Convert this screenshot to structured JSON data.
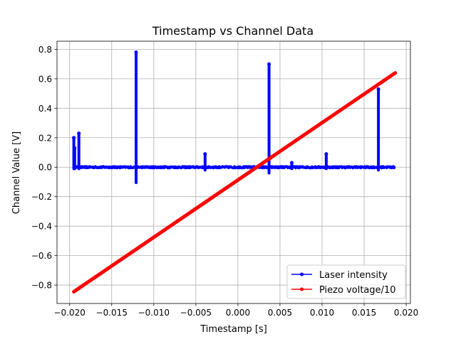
{
  "chart_data": {
    "type": "line",
    "title": "Timestamp vs Channel Data",
    "xlabel": "Timestamp [s]",
    "ylabel": "Channel Value [V]",
    "xlim": [
      -0.0215,
      0.0205
    ],
    "ylim": [
      -0.925,
      0.855
    ],
    "xticks": [
      -0.02,
      -0.015,
      -0.01,
      -0.005,
      0.0,
      0.005,
      0.01,
      0.015,
      0.02
    ],
    "xtick_labels": [
      "−0.020",
      "−0.015",
      "−0.010",
      "−0.005",
      "0.000",
      "0.005",
      "0.010",
      "0.015",
      "0.020"
    ],
    "yticks": [
      -0.8,
      -0.6,
      -0.4,
      -0.2,
      0.0,
      0.2,
      0.4,
      0.6,
      0.8
    ],
    "ytick_labels": [
      "−0.8",
      "−0.6",
      "−0.4",
      "−0.2",
      "0.0",
      "0.2",
      "0.4",
      "0.6",
      "0.8"
    ],
    "grid": true,
    "legend_position": "bottom-right",
    "series": [
      {
        "name": "Laser intensity",
        "color": "#0000ff",
        "marker": "circle",
        "x_range": [
          -0.0195,
          0.0187
        ],
        "baseline": 0.0,
        "noise": 0.006,
        "peaks": [
          {
            "x": -0.0195,
            "min": -0.01,
            "max": 0.2
          },
          {
            "x": -0.0194,
            "min": -0.01,
            "max": 0.13
          },
          {
            "x": -0.0189,
            "min": -0.01,
            "max": 0.23
          },
          {
            "x": -0.0121,
            "min": -0.105,
            "max": 0.78
          },
          {
            "x": -0.0039,
            "min": -0.02,
            "max": 0.09
          },
          {
            "x": 0.0037,
            "min": -0.04,
            "max": 0.7
          },
          {
            "x": 0.0064,
            "min": -0.01,
            "max": 0.03
          },
          {
            "x": 0.0105,
            "min": -0.01,
            "max": 0.09
          },
          {
            "x": 0.0167,
            "min": -0.02,
            "max": 0.53
          }
        ]
      },
      {
        "name": "Piezo voltage/10",
        "color": "#ff0000",
        "marker": "circle",
        "x": [
          -0.0195,
          0.0187
        ],
        "y": [
          -0.845,
          0.64
        ]
      }
    ]
  }
}
